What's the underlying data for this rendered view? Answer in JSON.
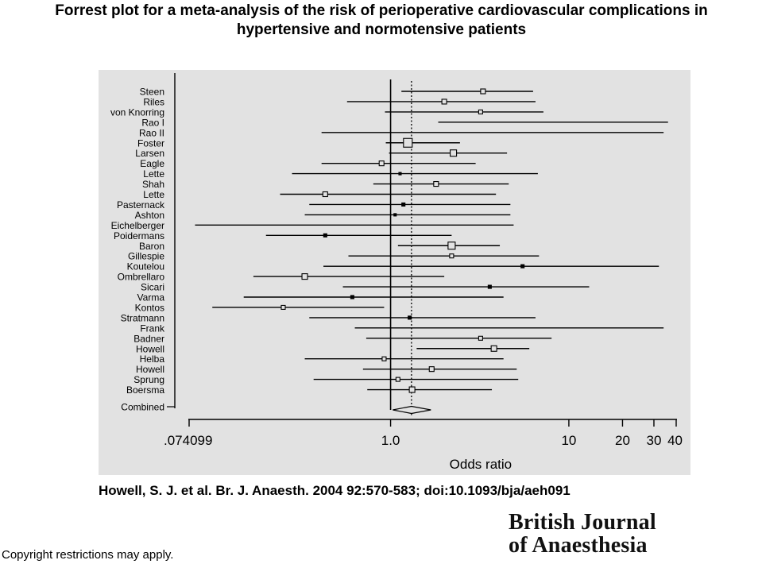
{
  "slide": {
    "title": "Forrest plot for a meta-analysis of the risk of perioperative cardiovascular complications in hypertensive and normotensive patients",
    "citation": "Howell, S. J. et al. Br. J. Anaesth. 2004 92:570-583; doi:10.1093/bja/aeh091",
    "copyright": "Copyright restrictions may apply.",
    "logo_line1": "British Journal",
    "logo_line2": "of Anaesthesia"
  },
  "chart_data": {
    "type": "forest",
    "xlabel": "Odds ratio",
    "x_scale": "log",
    "xlim": [
      0.074099,
      40
    ],
    "x_tick_labels": [
      ".074099",
      "1.0",
      "10",
      "20",
      "30",
      "40"
    ],
    "x_ticks": [
      0.074099,
      1.0,
      10,
      20,
      30,
      40
    ],
    "reference_line": 1.0,
    "pooled_estimate_line": 1.31,
    "studies": [
      {
        "name": "Steen",
        "or": 3.3,
        "low": 1.15,
        "high": 6.3,
        "box": 6
      },
      {
        "name": "Riles",
        "or": 2.0,
        "low": 0.57,
        "high": 6.5,
        "box": 6
      },
      {
        "name": "von Knorring",
        "or": 3.2,
        "low": 0.93,
        "high": 7.2,
        "box": 5
      },
      {
        "name": "Rao I",
        "or": null,
        "low": 1.85,
        "high": 36,
        "box": 0
      },
      {
        "name": "Rao II",
        "or": null,
        "low": 0.41,
        "high": 34,
        "box": 0
      },
      {
        "name": "Foster",
        "or": 1.25,
        "low": 0.94,
        "high": 2.45,
        "box": 11
      },
      {
        "name": "Larsen",
        "or": 2.25,
        "low": 0.98,
        "high": 4.5,
        "box": 8
      },
      {
        "name": "Eagle",
        "or": 0.89,
        "low": 0.41,
        "high": 3.0,
        "box": 6
      },
      {
        "name": "Lette",
        "or": 1.13,
        "low": 0.28,
        "high": 6.7,
        "box": 3
      },
      {
        "name": "Shah",
        "or": 1.8,
        "low": 0.8,
        "high": 4.6,
        "box": 6
      },
      {
        "name": "Lette",
        "or": 0.43,
        "low": 0.24,
        "high": 3.9,
        "box": 6
      },
      {
        "name": "Pasternack",
        "or": 1.18,
        "low": 0.35,
        "high": 4.7,
        "box": 4
      },
      {
        "name": "Ashton",
        "or": 1.06,
        "low": 0.33,
        "high": 4.7,
        "box": 3
      },
      {
        "name": "Eichelberger",
        "or": null,
        "low": 0.08,
        "high": 4.9,
        "box": 0
      },
      {
        "name": "Poidermans",
        "or": 0.43,
        "low": 0.2,
        "high": 2.2,
        "box": 4
      },
      {
        "name": "Baron",
        "or": 2.2,
        "low": 1.1,
        "high": 4.1,
        "box": 9
      },
      {
        "name": "Gillespie",
        "or": 2.2,
        "low": 0.58,
        "high": 6.8,
        "box": 5
      },
      {
        "name": "Koutelou",
        "or": 5.5,
        "low": 0.42,
        "high": 32,
        "box": 4
      },
      {
        "name": "Ombrellaro",
        "or": 0.33,
        "low": 0.17,
        "high": 2.0,
        "box": 7
      },
      {
        "name": "Sicari",
        "or": 3.6,
        "low": 0.54,
        "high": 13,
        "box": 4
      },
      {
        "name": "Varma",
        "or": 0.61,
        "low": 0.15,
        "high": 4.3,
        "box": 4
      },
      {
        "name": "Kontos",
        "or": 0.25,
        "low": 0.1,
        "high": 0.92,
        "box": 5
      },
      {
        "name": "Stratmann",
        "or": 1.28,
        "low": 0.35,
        "high": 6.5,
        "box": 4
      },
      {
        "name": "Frank",
        "or": null,
        "low": 0.63,
        "high": 34,
        "box": 0
      },
      {
        "name": "Badner",
        "or": 3.2,
        "low": 0.73,
        "high": 8.0,
        "box": 5
      },
      {
        "name": "Howell",
        "or": 3.8,
        "low": 1.4,
        "high": 6.0,
        "box": 7
      },
      {
        "name": "Helba",
        "or": 0.92,
        "low": 0.33,
        "high": 4.3,
        "box": 5
      },
      {
        "name": "Howell",
        "or": 1.7,
        "low": 0.7,
        "high": 5.1,
        "box": 6
      },
      {
        "name": "Sprung",
        "or": 1.1,
        "low": 0.37,
        "high": 5.2,
        "box": 5
      },
      {
        "name": "Boersma",
        "or": 1.32,
        "low": 0.74,
        "high": 3.7,
        "box": 7
      }
    ],
    "combined": {
      "name": "Combined",
      "or": 1.31,
      "low": 1.14,
      "high": 1.55
    }
  }
}
